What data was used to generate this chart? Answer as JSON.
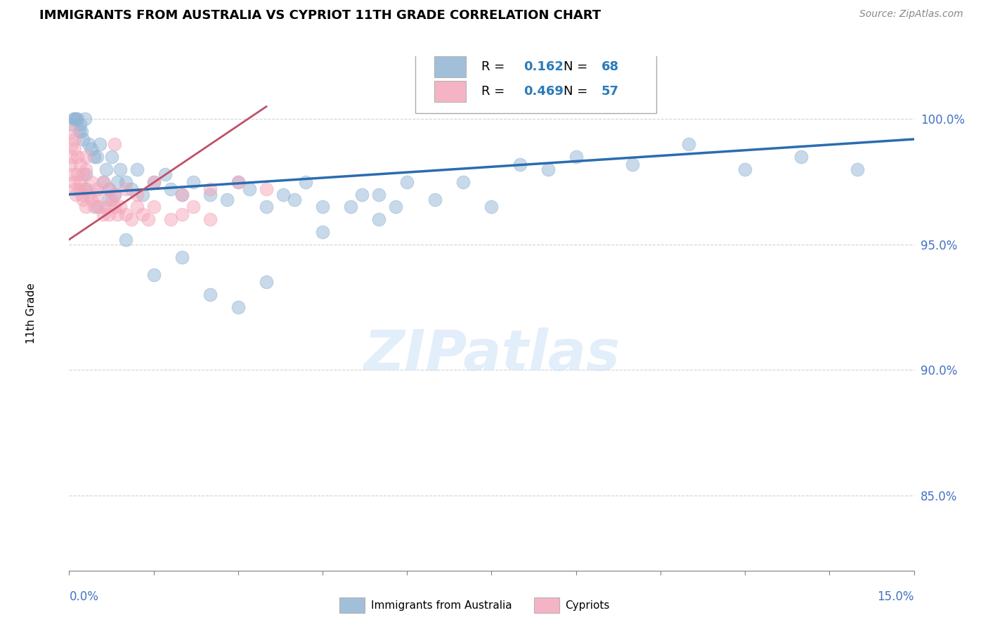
{
  "title": "IMMIGRANTS FROM AUSTRALIA VS CYPRIOT 11TH GRADE CORRELATION CHART",
  "source": "Source: ZipAtlas.com",
  "ylabel": "11th Grade",
  "xmin": 0.0,
  "xmax": 15.0,
  "ymin": 82.0,
  "ymax": 102.5,
  "yticks": [
    85.0,
    90.0,
    95.0,
    100.0
  ],
  "R_blue": "0.162",
  "N_blue": "68",
  "R_pink": "0.469",
  "N_pink": "57",
  "blue_color": "#92b4d4",
  "pink_color": "#f4a7bb",
  "blue_line_color": "#2b6cb0",
  "pink_line_color": "#c0506a",
  "legend_label_blue": "Immigrants from Australia",
  "legend_label_pink": "Cypriots",
  "watermark": "ZIPatlas",
  "blue_line_x0": 0.0,
  "blue_line_x1": 15.0,
  "blue_line_y0": 97.0,
  "blue_line_y1": 99.2,
  "pink_line_x0": 0.0,
  "pink_line_x1": 3.5,
  "pink_line_y0": 95.2,
  "pink_line_y1": 100.5,
  "blue_x": [
    0.05,
    0.08,
    0.1,
    0.12,
    0.15,
    0.18,
    0.2,
    0.22,
    0.25,
    0.28,
    0.3,
    0.35,
    0.4,
    0.45,
    0.5,
    0.55,
    0.6,
    0.65,
    0.7,
    0.75,
    0.8,
    0.85,
    0.9,
    1.0,
    1.1,
    1.2,
    1.3,
    1.5,
    1.7,
    1.8,
    2.0,
    2.2,
    2.5,
    2.8,
    3.0,
    3.2,
    3.5,
    3.8,
    4.0,
    4.2,
    4.5,
    5.0,
    5.2,
    5.5,
    5.8,
    6.0,
    6.5,
    7.0,
    7.5,
    8.0,
    8.5,
    9.0,
    10.0,
    11.0,
    12.0,
    13.0,
    14.0,
    0.3,
    0.5,
    0.7,
    1.0,
    1.5,
    2.0,
    2.5,
    3.0,
    3.5,
    4.5,
    5.5
  ],
  "blue_y": [
    99.8,
    100.0,
    100.0,
    100.0,
    100.0,
    99.5,
    99.8,
    99.5,
    99.2,
    100.0,
    97.8,
    99.0,
    98.8,
    98.5,
    98.5,
    99.0,
    97.5,
    98.0,
    97.2,
    98.5,
    97.0,
    97.5,
    98.0,
    97.5,
    97.2,
    98.0,
    97.0,
    97.5,
    97.8,
    97.2,
    97.0,
    97.5,
    97.0,
    96.8,
    97.5,
    97.2,
    96.5,
    97.0,
    96.8,
    97.5,
    96.5,
    96.5,
    97.0,
    97.0,
    96.5,
    97.5,
    96.8,
    97.5,
    96.5,
    98.2,
    98.0,
    98.5,
    98.2,
    99.0,
    98.0,
    98.5,
    98.0,
    97.2,
    96.5,
    96.8,
    95.2,
    93.8,
    94.5,
    93.0,
    92.5,
    93.5,
    95.5,
    96.0
  ],
  "pink_x": [
    0.02,
    0.04,
    0.06,
    0.08,
    0.1,
    0.12,
    0.15,
    0.18,
    0.2,
    0.22,
    0.25,
    0.28,
    0.3,
    0.35,
    0.4,
    0.45,
    0.5,
    0.55,
    0.6,
    0.65,
    0.7,
    0.75,
    0.8,
    0.85,
    0.9,
    1.0,
    1.1,
    1.2,
    1.3,
    1.4,
    1.5,
    1.8,
    2.0,
    2.2,
    2.5,
    3.0,
    3.5,
    0.05,
    0.1,
    0.15,
    0.2,
    0.25,
    0.3,
    0.4,
    0.5,
    0.6,
    0.7,
    0.8,
    1.0,
    1.2,
    1.5,
    2.0,
    2.5,
    0.05,
    0.1,
    0.3,
    0.8
  ],
  "pink_y": [
    98.2,
    98.5,
    97.8,
    97.5,
    97.2,
    97.0,
    97.8,
    97.2,
    97.5,
    97.0,
    96.8,
    97.2,
    96.5,
    97.0,
    96.8,
    96.5,
    97.0,
    96.5,
    96.2,
    96.5,
    96.2,
    96.8,
    96.5,
    96.2,
    96.5,
    96.2,
    96.0,
    96.5,
    96.2,
    96.0,
    96.5,
    96.0,
    96.2,
    96.5,
    96.0,
    97.5,
    97.2,
    99.0,
    98.8,
    98.5,
    98.2,
    97.8,
    98.0,
    97.5,
    97.2,
    97.5,
    97.2,
    97.0,
    97.2,
    97.0,
    97.5,
    97.0,
    97.2,
    99.5,
    99.2,
    98.5,
    99.0
  ]
}
